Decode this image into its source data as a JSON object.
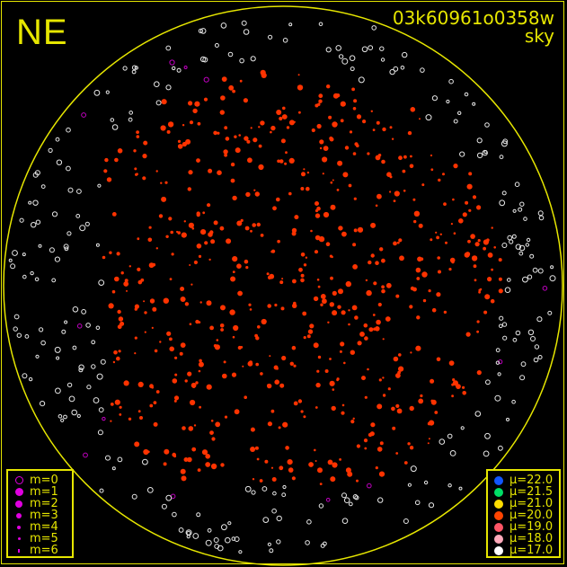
{
  "header": {
    "direction": "NE",
    "image_id": "03k60961o0358w",
    "mode": "sky"
  },
  "colors": {
    "frame": "#e6e600",
    "star_bright": "#ff3300",
    "star_faint": "#ffffff",
    "marker": "#e000e0"
  },
  "magnitude_legend": [
    {
      "label": "m=0",
      "style": "ring",
      "size": 8
    },
    {
      "label": "m=1",
      "style": "dot",
      "size": 9
    },
    {
      "label": "m=2",
      "style": "dot",
      "size": 8
    },
    {
      "label": "m=3",
      "style": "dot",
      "size": 6
    },
    {
      "label": "m=4",
      "style": "dot",
      "size": 4
    },
    {
      "label": "m=5",
      "style": "dot",
      "size": 3
    },
    {
      "label": "m=6",
      "style": "dot",
      "size": 2
    }
  ],
  "sky_brightness_legend": [
    {
      "label": "μ=22.0",
      "color": "#1155ff"
    },
    {
      "label": "μ=21.5",
      "color": "#00dd66"
    },
    {
      "label": "μ=21.0",
      "color": "#ffdd00"
    },
    {
      "label": "μ=20.0",
      "color": "#ff4400"
    },
    {
      "label": "μ=19.0",
      "color": "#ff5566"
    },
    {
      "label": "μ=18.0",
      "color": "#ffaabb"
    },
    {
      "label": "μ=17.0",
      "color": "#ffffff"
    }
  ]
}
